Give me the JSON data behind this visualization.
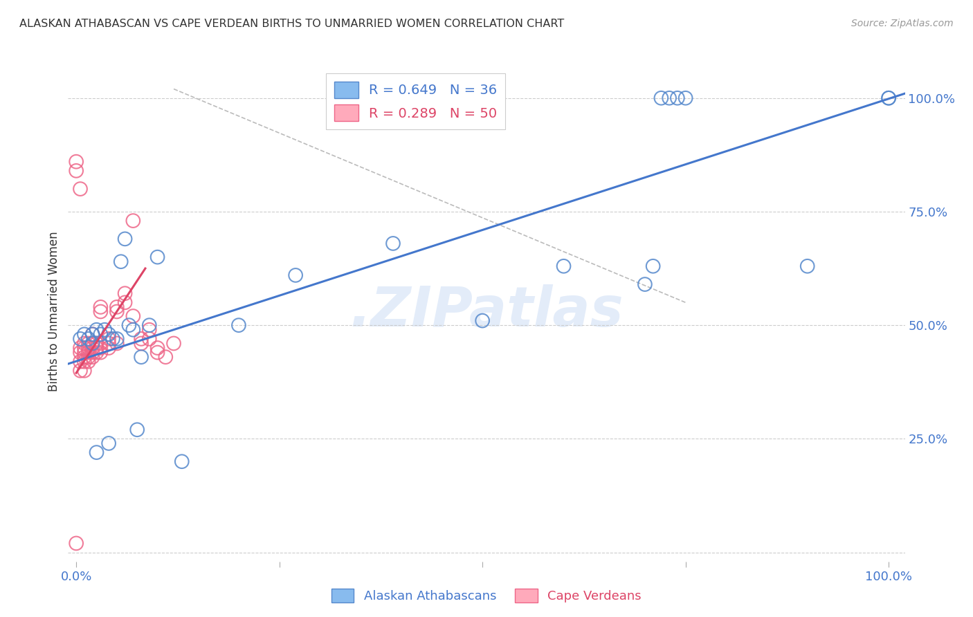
{
  "title": "ALASKAN ATHABASCAN VS CAPE VERDEAN BIRTHS TO UNMARRIED WOMEN CORRELATION CHART",
  "source": "Source: ZipAtlas.com",
  "ylabel": "Births to Unmarried Women",
  "legend_blue_r": "R = 0.649",
  "legend_blue_n": "N = 36",
  "legend_pink_r": "R = 0.289",
  "legend_pink_n": "N = 50",
  "watermark": ".ZIPatlas",
  "blue_color": "#88BBEE",
  "pink_color": "#FFAABB",
  "blue_edge_color": "#5588CC",
  "pink_edge_color": "#EE6688",
  "blue_line_color": "#4477CC",
  "pink_line_color": "#DD4466",
  "diag_line_color": "#BBBBBB",
  "grid_color": "#CCCCCC",
  "title_color": "#333333",
  "source_color": "#999999",
  "axis_label_color": "#4477CC",
  "blue_scatter_x": [
    0.005,
    0.01,
    0.015,
    0.02,
    0.02,
    0.025,
    0.025,
    0.03,
    0.035,
    0.04,
    0.04,
    0.045,
    0.05,
    0.055,
    0.06,
    0.065,
    0.07,
    0.075,
    0.08,
    0.09,
    0.1,
    0.13,
    0.2,
    0.27,
    0.39,
    0.5,
    0.6,
    0.7,
    0.71,
    0.72,
    0.73,
    0.74,
    0.75,
    0.9,
    1.0,
    1.0
  ],
  "blue_scatter_y": [
    0.47,
    0.48,
    0.47,
    0.46,
    0.48,
    0.49,
    0.22,
    0.48,
    0.49,
    0.48,
    0.24,
    0.47,
    0.47,
    0.64,
    0.69,
    0.5,
    0.49,
    0.27,
    0.43,
    0.5,
    0.65,
    0.2,
    0.5,
    0.61,
    0.68,
    0.51,
    0.63,
    0.59,
    0.63,
    1.0,
    1.0,
    1.0,
    1.0,
    0.63,
    1.0,
    1.0
  ],
  "pink_scatter_x": [
    0.0,
    0.0,
    0.0,
    0.005,
    0.005,
    0.005,
    0.01,
    0.01,
    0.01,
    0.01,
    0.01,
    0.01,
    0.015,
    0.015,
    0.015,
    0.015,
    0.015,
    0.02,
    0.02,
    0.02,
    0.02,
    0.02,
    0.025,
    0.025,
    0.025,
    0.03,
    0.03,
    0.03,
    0.03,
    0.04,
    0.04,
    0.04,
    0.05,
    0.05,
    0.05,
    0.06,
    0.06,
    0.07,
    0.07,
    0.08,
    0.08,
    0.09,
    0.09,
    0.1,
    0.1,
    0.11,
    0.12,
    0.005,
    0.005,
    0.03
  ],
  "pink_scatter_y": [
    0.84,
    0.86,
    0.02,
    0.42,
    0.44,
    0.45,
    0.4,
    0.42,
    0.43,
    0.44,
    0.45,
    0.46,
    0.42,
    0.43,
    0.44,
    0.45,
    0.46,
    0.43,
    0.44,
    0.45,
    0.46,
    0.48,
    0.44,
    0.45,
    0.46,
    0.44,
    0.45,
    0.46,
    0.53,
    0.45,
    0.46,
    0.47,
    0.46,
    0.53,
    0.54,
    0.55,
    0.57,
    0.52,
    0.73,
    0.46,
    0.47,
    0.47,
    0.49,
    0.44,
    0.45,
    0.43,
    0.46,
    0.4,
    0.8,
    0.54
  ],
  "xlim": [
    -0.01,
    1.02
  ],
  "ylim": [
    -0.02,
    1.08
  ],
  "blue_line_x": [
    -0.01,
    1.02
  ],
  "blue_line_y": [
    0.415,
    1.01
  ],
  "pink_line_x": [
    0.0,
    0.085
  ],
  "pink_line_y": [
    0.395,
    0.625
  ],
  "diag_line_x": [
    0.12,
    0.75
  ],
  "diag_line_y": [
    1.02,
    0.55
  ],
  "ytick_positions": [
    0.0,
    0.25,
    0.5,
    0.75,
    1.0
  ],
  "ytick_labels": [
    "",
    "25.0%",
    "50.0%",
    "75.0%",
    "100.0%"
  ],
  "xtick_positions": [
    0.0,
    0.25,
    0.5,
    0.75,
    1.0
  ],
  "xtick_labels": [
    "0.0%",
    "",
    "",
    "",
    "100.0%"
  ]
}
